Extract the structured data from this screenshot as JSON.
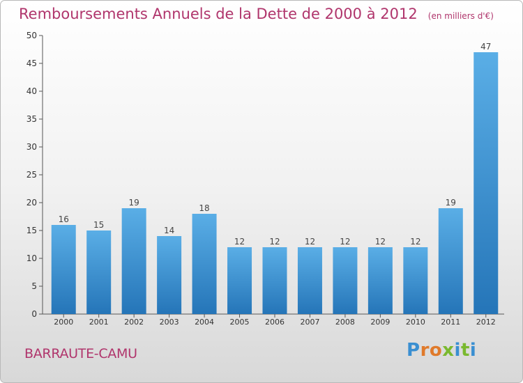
{
  "title": "Remboursements Annuels de la Dette de 2000 à 2012",
  "subtitle": "(en milliers d'€)",
  "place": "BARRAUTE-CAMU",
  "logo": {
    "text": "Proxiti",
    "colors": [
      "#3a8fd1",
      "#e07a2b",
      "#e07a2b",
      "#7ab92f",
      "#3a8fd1",
      "#7ab92f",
      "#3a8fd1"
    ]
  },
  "colors": {
    "bar_top": "#5aaee6",
    "bar_bottom": "#2575b8",
    "accent": "#b0356c"
  },
  "chart_data": {
    "type": "bar",
    "categories": [
      "2000",
      "2001",
      "2002",
      "2003",
      "2004",
      "2005",
      "2006",
      "2007",
      "2008",
      "2009",
      "2010",
      "2011",
      "2012"
    ],
    "values": [
      16,
      15,
      19,
      14,
      18,
      12,
      12,
      12,
      12,
      12,
      12,
      19,
      47
    ],
    "ylim": [
      0,
      50
    ],
    "yticks": [
      0,
      5,
      10,
      15,
      20,
      25,
      30,
      35,
      40,
      45,
      50
    ],
    "grid": false,
    "data_labels": true
  }
}
